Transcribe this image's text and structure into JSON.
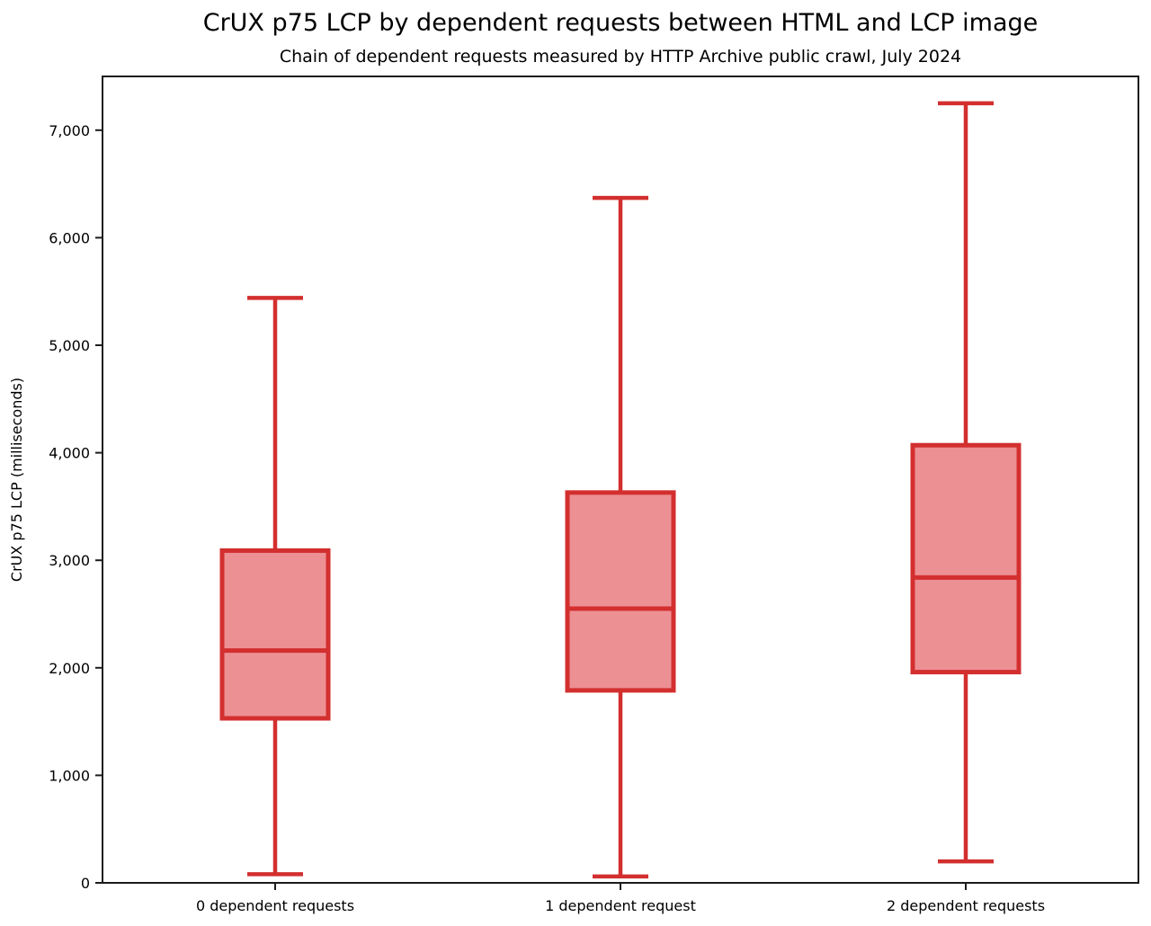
{
  "chart_data": {
    "type": "boxplot",
    "title": "CrUX p75 LCP by dependent requests between HTML and LCP image",
    "subtitle": "Chain of dependent requests measured by HTTP Archive public crawl, July 2024",
    "ylabel": "CrUX p75 LCP (milliseconds)",
    "xlabel": "",
    "categories": [
      "0 dependent requests",
      "1 dependent request",
      "2 dependent requests"
    ],
    "series": [
      {
        "name": "0 dependent requests",
        "whisker_low": 80,
        "q1": 1530,
        "median": 2160,
        "q3": 3090,
        "whisker_high": 5440
      },
      {
        "name": "1 dependent request",
        "whisker_low": 60,
        "q1": 1790,
        "median": 2550,
        "q3": 3630,
        "whisker_high": 6370
      },
      {
        "name": "2 dependent requests",
        "whisker_low": 200,
        "q1": 1960,
        "median": 2840,
        "q3": 4070,
        "whisker_high": 7250
      }
    ],
    "ylim": [
      0,
      7500
    ],
    "yticks": [
      0,
      1000,
      2000,
      3000,
      4000,
      5000,
      6000,
      7000
    ],
    "ytick_labels": [
      "0",
      "1,000",
      "2,000",
      "3,000",
      "4,000",
      "5,000",
      "6,000",
      "7,000"
    ],
    "grid": false,
    "legend_position": "none",
    "colors": {
      "box_edge": "#d32f2f",
      "box_fill": "#ec9094",
      "axis": "#1c1c1c",
      "text": "#000000"
    }
  }
}
